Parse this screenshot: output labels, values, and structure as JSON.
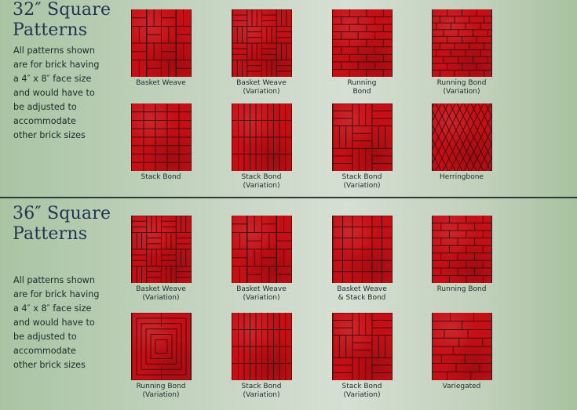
{
  "section_32": {
    "title_line1": "32″ Square",
    "title_line2": "Patterns",
    "description_lines": [
      "All patterns shown",
      "are for brick having",
      "a 4″ x 8″ face size",
      "and would have to",
      "be adjusted to",
      "accommodate",
      "other brick sizes"
    ],
    "patterns": [
      {
        "label_line1": "Basket Weave",
        "label_line2": "",
        "pattern": "basket-weave"
      },
      {
        "label_line1": "Basket Weave",
        "label_line2": "(Variation)",
        "pattern": "basket-weave-variation"
      },
      {
        "label_line1": "Running",
        "label_line2": "Bond",
        "pattern": "running-bond-vertical"
      },
      {
        "label_line1": "Running Bond",
        "label_line2": "(Variation)",
        "pattern": "running-bond-variation"
      },
      {
        "label_line1": "Stack Bond",
        "label_line2": "",
        "pattern": "stack-bond"
      },
      {
        "label_line1": "Stack Bond",
        "label_line2": "(Variation)",
        "pattern": "stack-bond-vertical"
      },
      {
        "label_line1": "Stack Bond",
        "label_line2": "(Variation)",
        "pattern": "stack-bond-variation"
      },
      {
        "label_line1": "Herringbone",
        "label_line2": "",
        "pattern": "herringbone"
      }
    ]
  },
  "section_36": {
    "title_line1": "36″ Square",
    "title_line2": "Patterns",
    "description_lines": [
      "All patterns shown",
      "are for brick having",
      "a 4″ x 8″ face size",
      "and would have to",
      "be adjusted to",
      "accommodate",
      "other brick sizes"
    ],
    "patterns": [
      {
        "label_line1": "Basket Weave",
        "label_line2": "(Variation)",
        "pattern": "basket-weave-variation"
      },
      {
        "label_line1": "Basket Weave",
        "label_line2": "(Variation)",
        "pattern": "basket-weave"
      },
      {
        "label_line1": "Basket Weave",
        "label_line2": "& Stack Bond",
        "pattern": "basket-stack"
      },
      {
        "label_line1": "Running Bond",
        "label_line2": "",
        "pattern": "running-bond-vertical"
      },
      {
        "label_line1": "Running Bond",
        "label_line2": "(Variation)",
        "pattern": "pinwheel"
      },
      {
        "label_line1": "Stack Bond",
        "label_line2": "(Variation)",
        "pattern": "stack-bond-vertical"
      },
      {
        "label_line1": "Stack Bond",
        "label_line2": "(Variation)",
        "pattern": "stack-bond-variation"
      },
      {
        "label_line1": "Variegated",
        "label_line2": "",
        "pattern": "variegated"
      }
    ]
  },
  "colors": {
    "brick": "#c40f16",
    "mortar": "#4a0a0a",
    "title": "#1f3550",
    "divider": "#2f3a34"
  }
}
